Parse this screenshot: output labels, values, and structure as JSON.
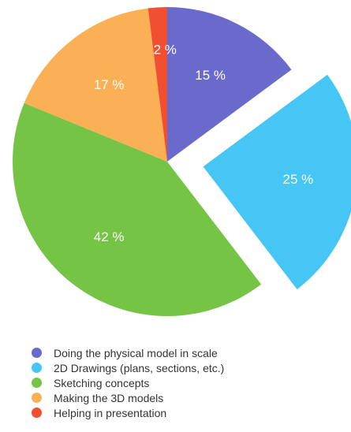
{
  "chart_data": {
    "type": "pie",
    "slices": [
      {
        "label": "Doing the physical model in scale",
        "value": 15,
        "value_label": "15 %",
        "color": "#6a6acd",
        "exploded": false
      },
      {
        "label": "2D Drawings (plans, sections, etc.)",
        "value": 25,
        "value_label": "25 %",
        "color": "#45c6f5",
        "exploded": true
      },
      {
        "label": "Sketching concepts",
        "value": 42,
        "value_label": "42 %",
        "color": "#75c445",
        "exploded": false
      },
      {
        "label": "Making the 3D models",
        "value": 17,
        "value_label": "17 %",
        "color": "#fbb055",
        "exploded": false
      },
      {
        "label": "Helping in presentation",
        "value": 2,
        "value_label": "2 %",
        "color": "#f04f32",
        "exploded": false
      }
    ],
    "start": "12 o'clock",
    "direction": "clockwise",
    "legend_position": "bottom-left"
  }
}
